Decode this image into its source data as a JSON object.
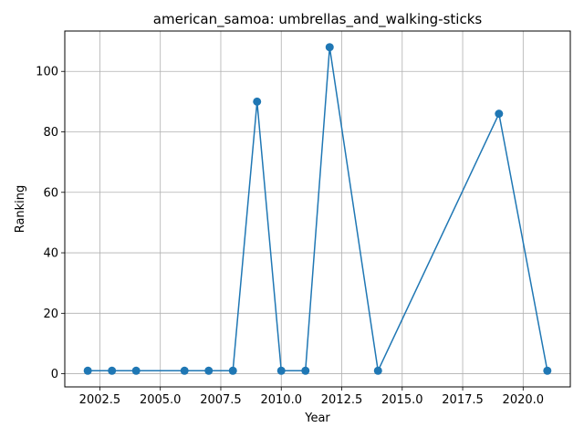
{
  "chart_data": {
    "type": "line",
    "title": "american_samoa: umbrellas_and_walking-sticks",
    "xlabel": "Year",
    "ylabel": "Ranking",
    "xlim": [
      2001.05,
      2021.95
    ],
    "ylim": [
      -4.35,
      113.35
    ],
    "x_ticks": [
      2002.5,
      2005.0,
      2007.5,
      2010.0,
      2012.5,
      2015.0,
      2017.5,
      2020.0
    ],
    "x_tick_labels": [
      "2002.5",
      "2005.0",
      "2007.5",
      "2010.0",
      "2012.5",
      "2015.0",
      "2017.5",
      "2020.0"
    ],
    "y_ticks": [
      0,
      20,
      40,
      60,
      80,
      100
    ],
    "y_tick_labels": [
      "0",
      "20",
      "40",
      "60",
      "80",
      "100"
    ],
    "grid": true,
    "series": [
      {
        "color": "#1f77b4",
        "marker": "circle",
        "x": [
          2002,
          2003,
          2004,
          2006,
          2007,
          2008,
          2009,
          2010,
          2011,
          2012,
          2014,
          2019,
          2021
        ],
        "y": [
          1,
          1,
          1,
          1,
          1,
          1,
          90,
          1,
          1,
          108,
          1,
          86,
          1
        ]
      }
    ]
  }
}
